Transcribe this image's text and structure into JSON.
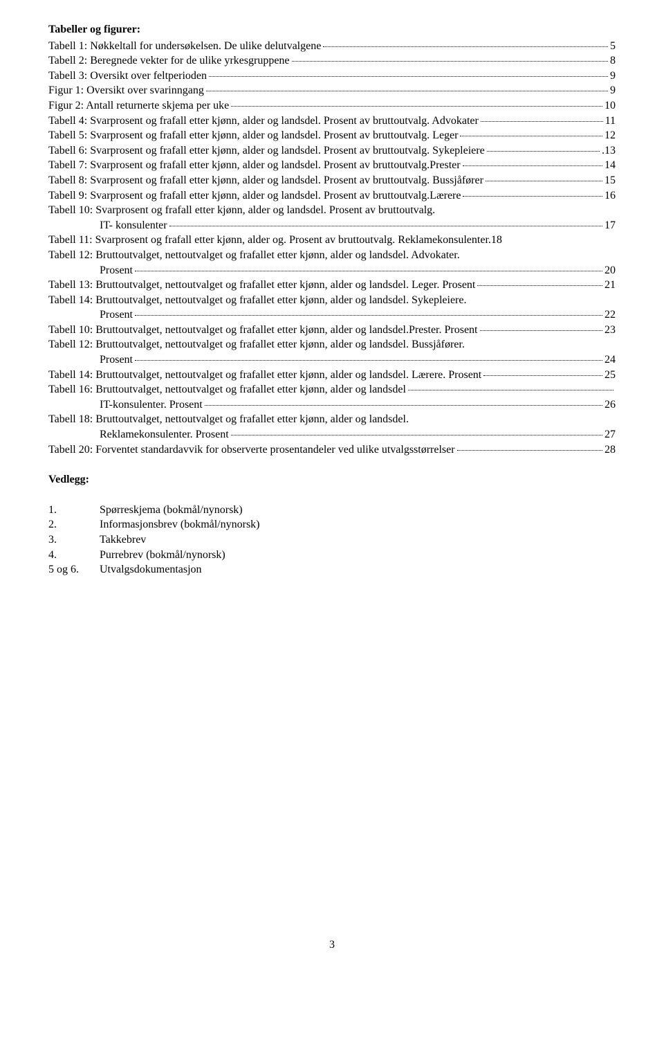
{
  "heading": "Tabeller og figurer:",
  "toc": [
    {
      "lines": [
        {
          "text": "Tabell 1: Nøkkeltall for undersøkelsen. De ulike delutvalgene",
          "indent": false
        }
      ],
      "page": "5"
    },
    {
      "lines": [
        {
          "text": "Tabell 2: Beregnede vekter for de ulike yrkesgruppene",
          "indent": false
        }
      ],
      "page": "8"
    },
    {
      "lines": [
        {
          "text": "Tabell 3: Oversikt over feltperioden",
          "indent": false
        }
      ],
      "page": "9"
    },
    {
      "lines": [
        {
          "text": "Figur 1: Oversikt over svarinngang",
          "indent": false
        }
      ],
      "page": "9"
    },
    {
      "lines": [
        {
          "text": "Figur 2: Antall returnerte skjema per uke",
          "indent": false
        }
      ],
      "page": "10"
    },
    {
      "lines": [
        {
          "text": "Tabell 4: Svarprosent og frafall etter kjønn, alder og landsdel. Prosent av bruttoutvalg. Advokater",
          "indent": false
        }
      ],
      "page": "11"
    },
    {
      "lines": [
        {
          "text": "Tabell 5: Svarprosent og frafall etter kjønn, alder og landsdel. Prosent av bruttoutvalg. Leger",
          "indent": false
        }
      ],
      "page": "12"
    },
    {
      "lines": [
        {
          "text": "Tabell 6: Svarprosent og frafall etter kjønn, alder og landsdel. Prosent av bruttoutvalg. Sykepleiere ",
          "indent": false
        }
      ],
      "page": ".13"
    },
    {
      "lines": [
        {
          "text": "Tabell 7: Svarprosent og frafall etter kjønn, alder og landsdel. Prosent av bruttoutvalg.Prester",
          "indent": false
        }
      ],
      "page": "14"
    },
    {
      "lines": [
        {
          "text": "Tabell 8: Svarprosent og frafall etter kjønn, alder og landsdel. Prosent av bruttoutvalg. Bussjåfører",
          "indent": false
        }
      ],
      "page": "15"
    },
    {
      "lines": [
        {
          "text": "Tabell 9: Svarprosent og frafall etter kjønn, alder og landsdel. Prosent av bruttoutvalg.Lærere",
          "indent": false
        }
      ],
      "page": "16"
    },
    {
      "lines": [
        {
          "text": "Tabell 10: Svarprosent og frafall etter kjønn, alder og landsdel. Prosent av bruttoutvalg.",
          "indent": false,
          "noleader": true
        },
        {
          "text": "IT- konsulenter",
          "indent": true
        }
      ],
      "page": "17"
    },
    {
      "lines": [
        {
          "text": "Tabell 11: Svarprosent og frafall etter kjønn, alder og. Prosent av bruttoutvalg. Reklamekonsulenter.18",
          "indent": false
        }
      ],
      "nopagenum": true
    },
    {
      "lines": [
        {
          "text": "Tabell 12: Bruttoutvalget, nettoutvalget og frafallet etter kjønn, alder og landsdel. Advokater.",
          "indent": false,
          "noleader": true
        },
        {
          "text": "Prosent",
          "indent": true
        }
      ],
      "page": "20"
    },
    {
      "lines": [
        {
          "text": "Tabell 13: Bruttoutvalget, nettoutvalget og frafallet etter kjønn, alder og landsdel. Leger. Prosent",
          "indent": false
        }
      ],
      "page": "21"
    },
    {
      "lines": [
        {
          "text": "Tabell 14: Bruttoutvalget, nettoutvalget og frafallet etter kjønn, alder og landsdel. Sykepleiere.",
          "indent": false,
          "noleader": true
        },
        {
          "text": "Prosent",
          "indent": true
        }
      ],
      "page": "22"
    },
    {
      "lines": [
        {
          "text": "Tabell 10: Bruttoutvalget, nettoutvalget og frafallet etter kjønn, alder og landsdel.Prester. Prosent",
          "indent": false
        }
      ],
      "page": "23"
    },
    {
      "lines": [
        {
          "text": "Tabell 12: Bruttoutvalget, nettoutvalget og frafallet etter kjønn, alder og landsdel. Bussjåfører.",
          "indent": false,
          "noleader": true
        },
        {
          "text": "Prosent",
          "indent": true
        }
      ],
      "page": "24"
    },
    {
      "lines": [
        {
          "text": "Tabell 14: Bruttoutvalget, nettoutvalget og frafallet etter kjønn, alder og landsdel. Lærere. Prosent",
          "indent": false
        }
      ],
      "page": "25"
    },
    {
      "lines": [
        {
          "text": "Tabell 16: Bruttoutvalget, nettoutvalget og frafallet etter kjønn, alder og landsdel",
          "indent": false
        },
        {
          "text": "IT-konsulenter. Prosent",
          "indent": true
        }
      ],
      "page": "26"
    },
    {
      "lines": [
        {
          "text": "Tabell 18: Bruttoutvalget, nettoutvalget og frafallet etter kjønn, alder og landsdel.",
          "indent": false,
          "noleader": true
        },
        {
          "text": "Reklamekonsulenter. Prosent",
          "indent": true
        }
      ],
      "page": "27"
    },
    {
      "lines": [
        {
          "text": "Tabell 20: Forventet standardavvik for observerte prosentandeler ved ulike utvalgsstørrelser",
          "indent": false
        }
      ],
      "page": "28"
    }
  ],
  "vedlegg_heading": "Vedlegg:",
  "vedlegg": [
    {
      "num": "1.",
      "text": "Spørreskjema (bokmål/nynorsk)"
    },
    {
      "num": "2.",
      "text": "Informasjonsbrev (bokmål/nynorsk)"
    },
    {
      "num": "3.",
      "text": "Takkebrev"
    },
    {
      "num": "4.",
      "text": "Purrebrev (bokmål/nynorsk)"
    },
    {
      "num": "5 og 6.",
      "text": "Utvalgsdokumentasjon"
    }
  ],
  "page_number": "3"
}
